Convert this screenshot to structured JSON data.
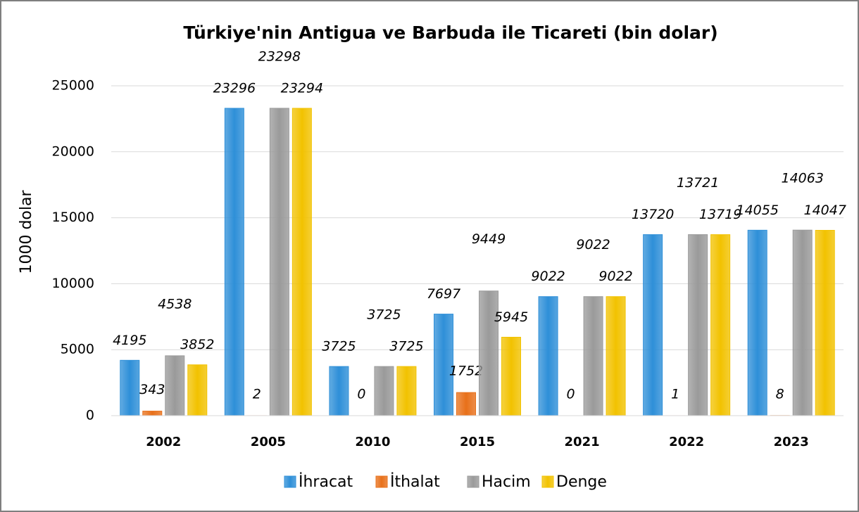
{
  "chart_data": {
    "type": "bar",
    "title": "Türkiye'nin Antigua ve Barbuda ile Ticareti (bin dolar)",
    "y_label": "1000 dolar",
    "categories": [
      "2002",
      "2005",
      "2010",
      "2015",
      "2021",
      "2022",
      "2023"
    ],
    "series": [
      {
        "name": "İhracat",
        "color": "#2e8fd8",
        "values": [
          4195,
          23296,
          3725,
          7697,
          9022,
          13720,
          14055
        ]
      },
      {
        "name": "İthalat",
        "color": "#e8701a",
        "values": [
          343,
          2,
          0,
          1752,
          0,
          1,
          8
        ]
      },
      {
        "name": "Hacim",
        "color": "#9a9a9a",
        "values": [
          4538,
          23298,
          3725,
          9449,
          9022,
          13721,
          14063
        ]
      },
      {
        "name": "Denge",
        "color": "#f2c200",
        "values": [
          3852,
          23294,
          3725,
          5945,
          9022,
          13719,
          14047
        ]
      }
    ],
    "ylim": [
      0,
      25000
    ],
    "yticks": [
      0,
      5000,
      10000,
      15000,
      20000,
      25000
    ],
    "grid": true,
    "legend": "bottom"
  }
}
